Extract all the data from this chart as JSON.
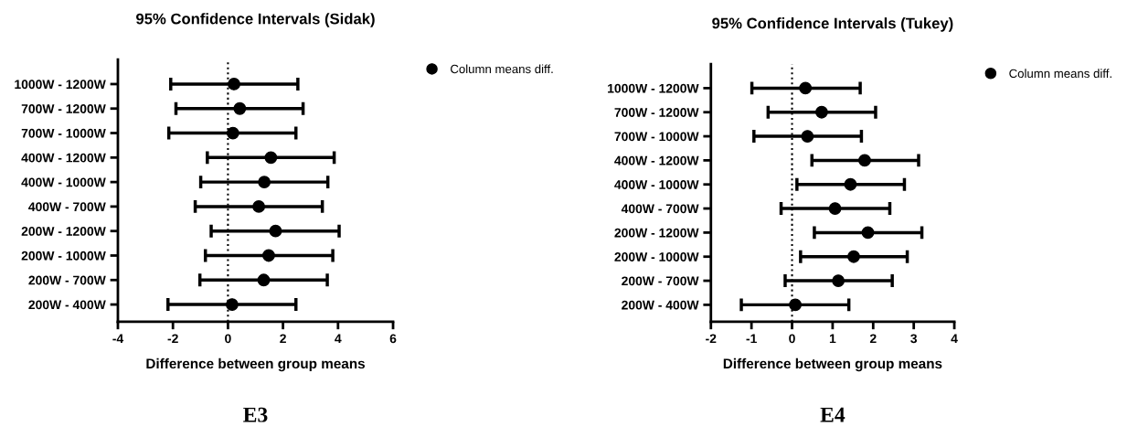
{
  "chart_data": [
    {
      "type": "scatter",
      "title": "95% Confidence Intervals (Sidak)",
      "xlabel": "Difference between group means",
      "orientation": "horizontal",
      "categories": [
        "1000W - 1200W",
        "700W - 1200W",
        "700W - 1000W",
        "400W - 1200W",
        "400W - 1000W",
        "400W - 700W",
        "200W - 1200W",
        "200W - 1000W",
        "200W - 700W",
        "200W - 400W"
      ],
      "series": [
        {
          "name": "Column means diff.",
          "color": "#000000",
          "values": [
            0.22,
            0.43,
            0.18,
            1.56,
            1.32,
            1.12,
            1.73,
            1.48,
            1.3,
            0.15
          ],
          "errors": [
            [
              -2.08,
              2.54
            ],
            [
              -1.89,
              2.73
            ],
            [
              -2.15,
              2.47
            ],
            [
              -0.75,
              3.86
            ],
            [
              -0.99,
              3.63
            ],
            [
              -1.19,
              3.43
            ],
            [
              -0.61,
              4.04
            ],
            [
              -0.82,
              3.81
            ],
            [
              -1.02,
              3.61
            ],
            [
              -2.18,
              2.47
            ]
          ]
        }
      ],
      "xlim": [
        -4,
        6
      ],
      "xticks": [
        -4,
        -2,
        0,
        2,
        4,
        6
      ],
      "marker": "circle",
      "legend": "top right",
      "grid": false,
      "ref_lines": [
        {
          "axis": "x",
          "value": 0,
          "color": "#000000",
          "line_style": "dotted"
        }
      ],
      "annotations": [
        "E3"
      ]
    },
    {
      "type": "scatter",
      "title": "95% Confidence Intervals (Tukey)",
      "xlabel": "Difference between group means",
      "orientation": "horizontal",
      "categories": [
        "1000W - 1200W",
        "700W - 1200W",
        "700W - 1000W",
        "400W - 1200W",
        "400W - 1000W",
        "400W - 700W",
        "200W - 1200W",
        "200W - 1000W",
        "200W - 700W",
        "200W - 400W"
      ],
      "series": [
        {
          "name": "Column means diff.",
          "color": "#000000",
          "values": [
            0.33,
            0.73,
            0.38,
            1.79,
            1.44,
            1.06,
            1.87,
            1.52,
            1.14,
            0.08
          ],
          "errors": [
            [
              -0.99,
              1.68
            ],
            [
              -0.59,
              2.06
            ],
            [
              -0.94,
              1.71
            ],
            [
              0.49,
              3.12
            ],
            [
              0.12,
              2.77
            ],
            [
              -0.27,
              2.41
            ],
            [
              0.55,
              3.2
            ],
            [
              0.21,
              2.84
            ],
            [
              -0.17,
              2.47
            ],
            [
              -1.25,
              1.4
            ]
          ]
        }
      ],
      "xlim": [
        -2,
        4
      ],
      "xticks": [
        -2,
        -1,
        0,
        1,
        2,
        3,
        4
      ],
      "marker": "circle",
      "legend": "top right",
      "grid": false,
      "ref_lines": [
        {
          "axis": "x",
          "value": 0,
          "color": "#000000",
          "line_style": "dotted"
        }
      ],
      "annotations": [
        "E4"
      ]
    }
  ]
}
